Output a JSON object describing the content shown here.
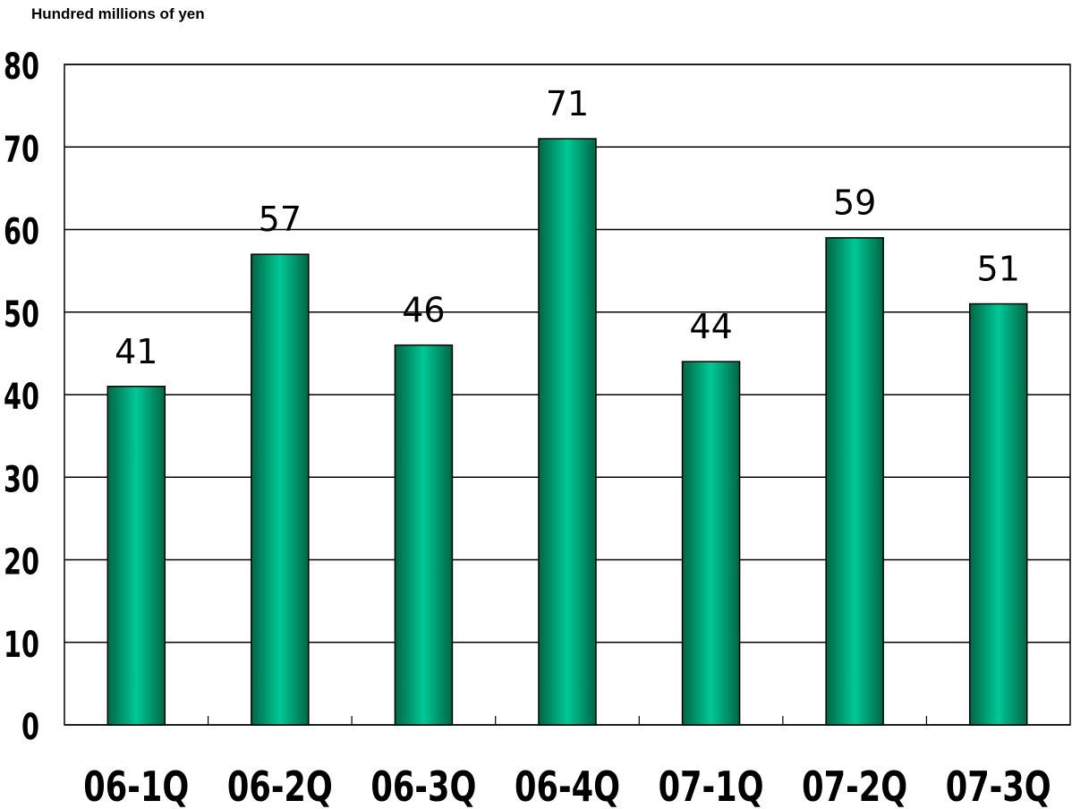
{
  "chart_data": {
    "type": "bar",
    "title": "",
    "unit_label": "Hundred millions of yen",
    "xlabel": "",
    "ylabel": "",
    "categories": [
      "06-1Q",
      "06-2Q",
      "06-3Q",
      "06-4Q",
      "07-1Q",
      "07-2Q",
      "07-3Q"
    ],
    "values": [
      41,
      57,
      46,
      71,
      44,
      59,
      51
    ],
    "ylim": [
      0,
      80
    ],
    "yticks": [
      0,
      10,
      20,
      30,
      40,
      50,
      60,
      70,
      80
    ],
    "grid": true,
    "legend": "none",
    "colors": {
      "bar_center": "#00c896",
      "bar_edge": "#006645",
      "bar_outline": "#000000",
      "grid": "#000000"
    }
  }
}
